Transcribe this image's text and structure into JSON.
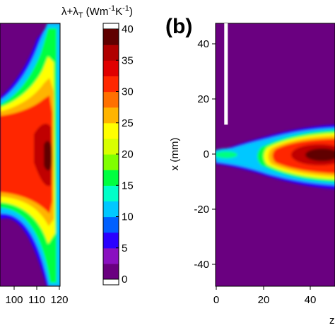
{
  "chart_data": [
    {
      "type": "heatmap",
      "panel": "a",
      "panel_label_visible": false,
      "x_ticks": [
        "100",
        "110",
        "120"
      ],
      "x_range": [
        93,
        120
      ],
      "y_range": [
        -48,
        48
      ],
      "field": "λ+λT",
      "description_values": {
        "background": 0,
        "core_max": 40,
        "hot_ridge_x": 117
      }
    },
    {
      "type": "heatmap",
      "panel": "b",
      "panel_label": "(b)",
      "xlabel": "z",
      "ylabel": "x (mm)",
      "x_ticks": [
        "0",
        "20",
        "40"
      ],
      "y_ticks": [
        "40",
        "20",
        "0",
        "-20",
        "-40"
      ],
      "x_range": [
        0,
        57
      ],
      "y_range": [
        -48,
        48
      ],
      "marker_bar": {
        "x": 5,
        "y_from": 11,
        "y_to": 48
      },
      "description_values": {
        "background": 0,
        "hot_core_z": 48,
        "hot_core_max": 40,
        "nozzle_spot_z": 8,
        "nozzle_spot_value": 15
      }
    },
    {
      "type": "colorbar",
      "title_main": "λ+λ",
      "title_sub": "T",
      "title_unit_open": " (Wm",
      "title_exp1": "-1",
      "title_mid": "K",
      "title_exp2": "-1",
      "title_close": ")",
      "ticks": [
        "40",
        "35",
        "30",
        "25",
        "20",
        "15",
        "10",
        "5",
        "0"
      ],
      "range": [
        0,
        40
      ],
      "levels": 16,
      "colors": [
        "#6a0080",
        "#8a10c0",
        "#2a00ff",
        "#0060ff",
        "#00c8ff",
        "#00ffc8",
        "#00ff40",
        "#80ff00",
        "#d8ff00",
        "#ffff00",
        "#ffb400",
        "#ff7000",
        "#ff2800",
        "#e00000",
        "#b00000",
        "#600000"
      ]
    }
  ]
}
